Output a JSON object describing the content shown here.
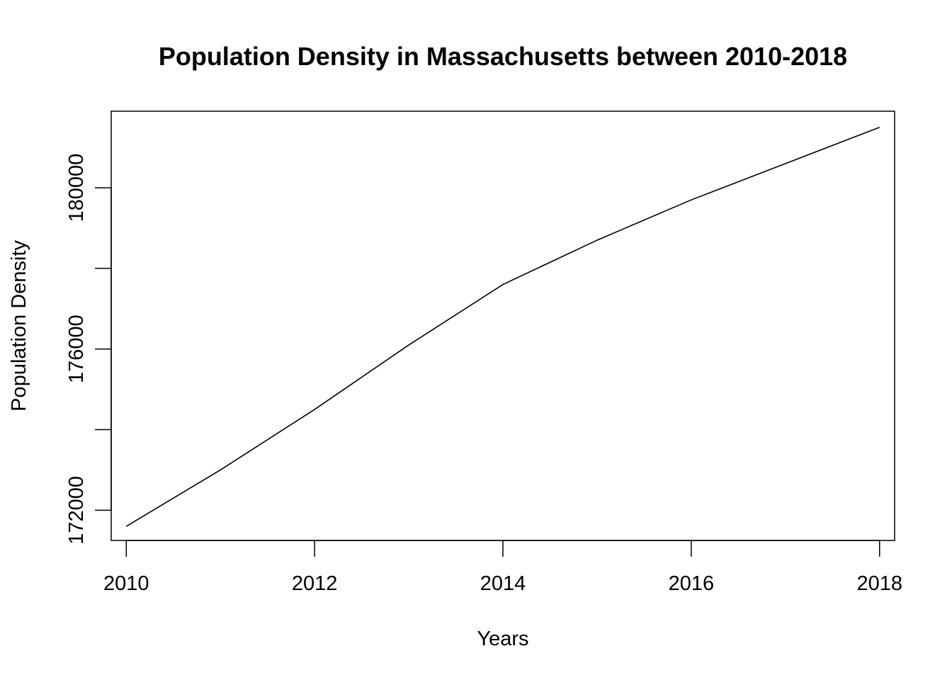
{
  "chart_data": {
    "type": "line",
    "title": "Population Density in Massachusetts between 2010-2018",
    "xlabel": "Years",
    "ylabel": "Population Density",
    "x": [
      2010,
      2011,
      2012,
      2013,
      2014,
      2015,
      2016,
      2017,
      2018
    ],
    "series": [
      {
        "values": [
          171600,
          173000,
          174500,
          176100,
          177600,
          178700,
          179700,
          180600,
          181500
        ]
      }
    ],
    "xlim": [
      2009.84,
      2018.16
    ],
    "ylim": [
      171250,
      181900
    ],
    "x_ticks": [
      2010,
      2012,
      2014,
      2016,
      2018
    ],
    "y_ticks": [
      172000,
      174000,
      176000,
      178000,
      180000
    ],
    "y_tick_labels": [
      "172000",
      "",
      "176000",
      "",
      "180000"
    ],
    "grid": false,
    "legend": "none",
    "line_color": "#000000"
  }
}
